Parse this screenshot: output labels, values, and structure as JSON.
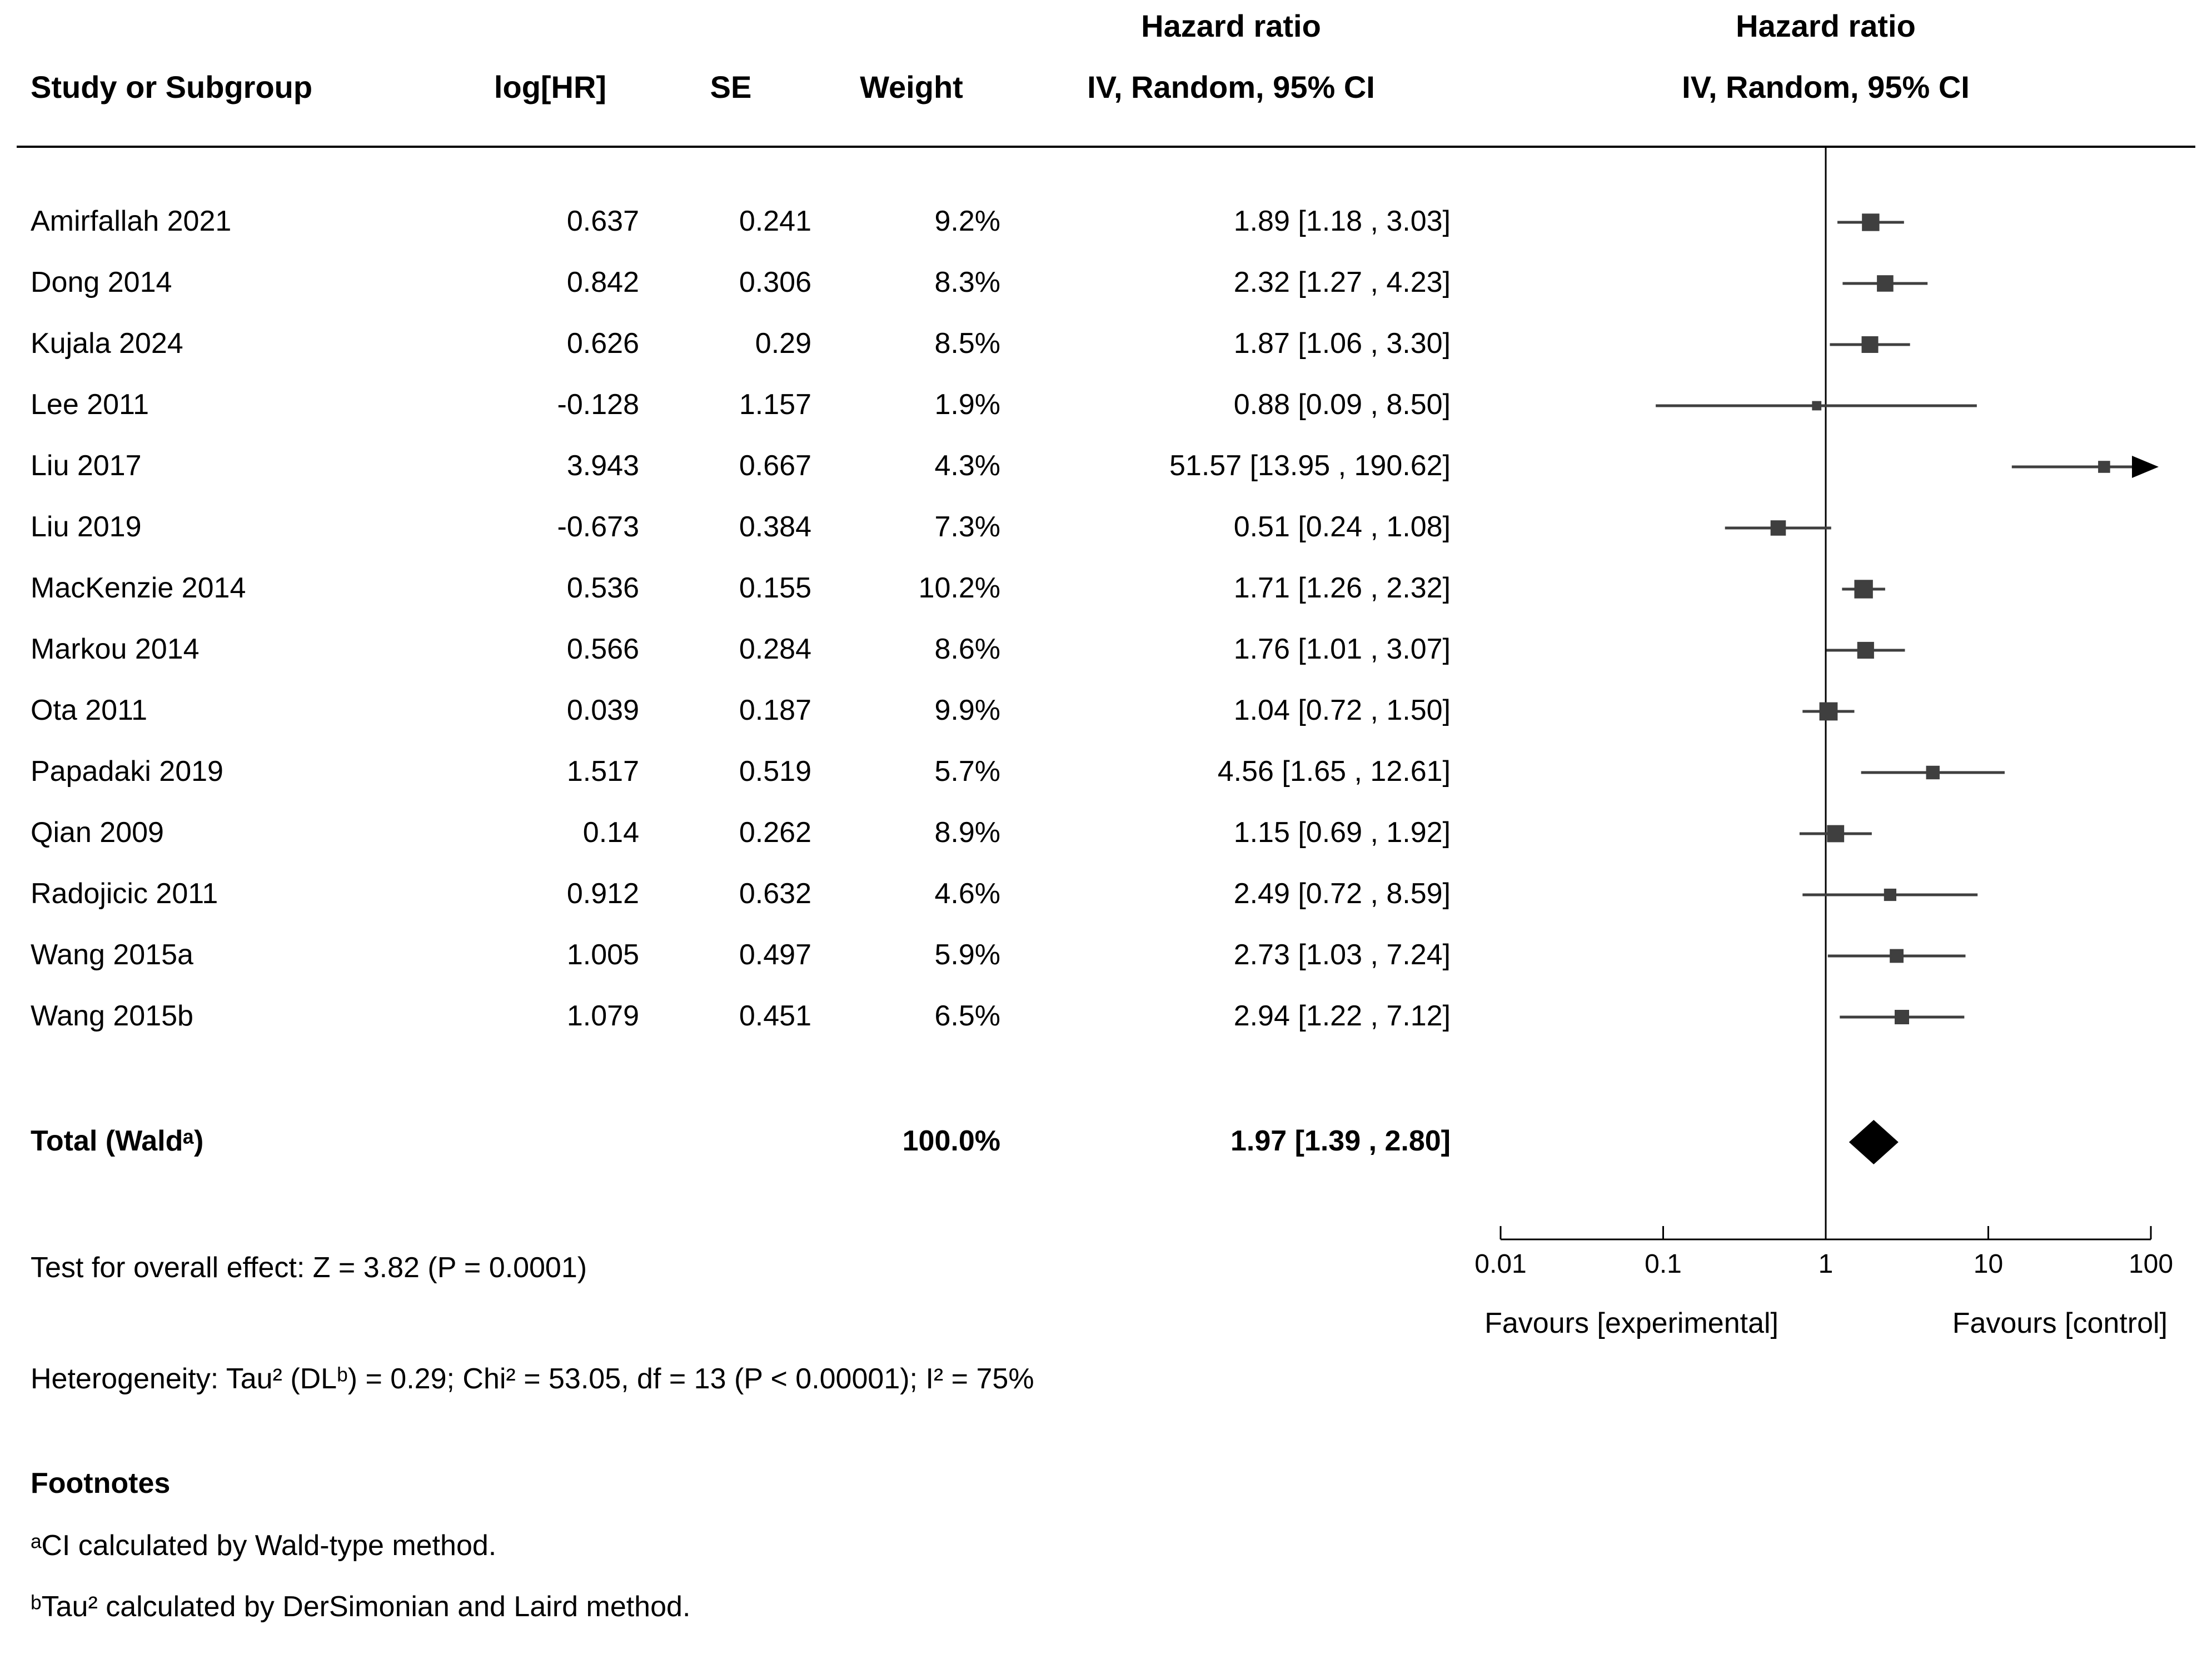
{
  "page": {
    "background": "#ffffff"
  },
  "chart_data": {
    "type": "forest",
    "effect_measure": "Hazard ratio",
    "model": "IV, Random, 95% CI",
    "group_headers": {
      "ci_column": "Hazard ratio",
      "plot_column": "Hazard ratio"
    },
    "subheaders": {
      "ci_column": "IV, Random, 95% CI",
      "plot_column": "IV, Random, 95% CI"
    },
    "columns": {
      "study": "Study or Subgroup",
      "log_hr": "log[HR]",
      "se": "SE",
      "weight": "Weight",
      "ci": "IV, Random, 95% CI"
    },
    "studies": [
      {
        "name": "Amirfallah 2021",
        "log_hr": "0.637",
        "se": "0.241",
        "weight": "9.2%",
        "weight_value": 9.2,
        "ci_label": "1.89 [1.18 , 3.03]",
        "hr": 1.89,
        "lo": 1.18,
        "hi": 3.03
      },
      {
        "name": "Dong 2014",
        "log_hr": "0.842",
        "se": "0.306",
        "weight": "8.3%",
        "weight_value": 8.3,
        "ci_label": "2.32 [1.27 , 4.23]",
        "hr": 2.32,
        "lo": 1.27,
        "hi": 4.23
      },
      {
        "name": "Kujala 2024",
        "log_hr": "0.626",
        "se": "0.29",
        "weight": "8.5%",
        "weight_value": 8.5,
        "ci_label": "1.87 [1.06 , 3.30]",
        "hr": 1.87,
        "lo": 1.06,
        "hi": 3.3
      },
      {
        "name": "Lee 2011",
        "log_hr": "-0.128",
        "se": "1.157",
        "weight": "1.9%",
        "weight_value": 1.9,
        "ci_label": "0.88 [0.09 , 8.50]",
        "hr": 0.88,
        "lo": 0.09,
        "hi": 8.5
      },
      {
        "name": "Liu 2017",
        "log_hr": "3.943",
        "se": "0.667",
        "weight": "4.3%",
        "weight_value": 4.3,
        "ci_label": "51.57 [13.95 , 190.62]",
        "hr": 51.57,
        "lo": 13.95,
        "hi": 190.62
      },
      {
        "name": "Liu 2019",
        "log_hr": "-0.673",
        "se": "0.384",
        "weight": "7.3%",
        "weight_value": 7.3,
        "ci_label": "0.51 [0.24 , 1.08]",
        "hr": 0.51,
        "lo": 0.24,
        "hi": 1.08
      },
      {
        "name": "MacKenzie 2014",
        "log_hr": "0.536",
        "se": "0.155",
        "weight": "10.2%",
        "weight_value": 10.2,
        "ci_label": "1.71 [1.26 , 2.32]",
        "hr": 1.71,
        "lo": 1.26,
        "hi": 2.32
      },
      {
        "name": "Markou 2014",
        "log_hr": "0.566",
        "se": "0.284",
        "weight": "8.6%",
        "weight_value": 8.6,
        "ci_label": "1.76 [1.01 , 3.07]",
        "hr": 1.76,
        "lo": 1.01,
        "hi": 3.07
      },
      {
        "name": "Ota 2011",
        "log_hr": "0.039",
        "se": "0.187",
        "weight": "9.9%",
        "weight_value": 9.9,
        "ci_label": "1.04 [0.72 , 1.50]",
        "hr": 1.04,
        "lo": 0.72,
        "hi": 1.5
      },
      {
        "name": "Papadaki 2019",
        "log_hr": "1.517",
        "se": "0.519",
        "weight": "5.7%",
        "weight_value": 5.7,
        "ci_label": "4.56 [1.65 , 12.61]",
        "hr": 4.56,
        "lo": 1.65,
        "hi": 12.61
      },
      {
        "name": "Qian 2009",
        "log_hr": "0.14",
        "se": "0.262",
        "weight": "8.9%",
        "weight_value": 8.9,
        "ci_label": "1.15 [0.69 , 1.92]",
        "hr": 1.15,
        "lo": 0.69,
        "hi": 1.92
      },
      {
        "name": "Radojicic 2011",
        "log_hr": "0.912",
        "se": "0.632",
        "weight": "4.6%",
        "weight_value": 4.6,
        "ci_label": "2.49 [0.72 , 8.59]",
        "hr": 2.49,
        "lo": 0.72,
        "hi": 8.59
      },
      {
        "name": "Wang 2015a",
        "log_hr": "1.005",
        "se": "0.497",
        "weight": "5.9%",
        "weight_value": 5.9,
        "ci_label": "2.73 [1.03 , 7.24]",
        "hr": 2.73,
        "lo": 1.03,
        "hi": 7.24
      },
      {
        "name": "Wang 2015b",
        "log_hr": "1.079",
        "se": "0.451",
        "weight": "6.5%",
        "weight_value": 6.5,
        "ci_label": "2.94 [1.22 , 7.12]",
        "hr": 2.94,
        "lo": 1.22,
        "hi": 7.12
      }
    ],
    "total": {
      "label": "Total (Waldᵃ)",
      "weight": "100.0%",
      "ci_label": "1.97 [1.39 , 2.80]",
      "hr": 1.97,
      "lo": 1.39,
      "hi": 2.8
    },
    "x_axis": {
      "scale": "log10",
      "min": 0.01,
      "max": 100,
      "ticks": [
        0.01,
        0.1,
        1,
        10,
        100
      ],
      "tick_labels": [
        "0.01",
        "0.1",
        "1",
        "10",
        "100"
      ],
      "reference_value": 1,
      "left_label": "Favours [experimental]",
      "right_label": "Favours [control]"
    },
    "stats": {
      "overall_effect": "Test for overall effect: Z = 3.82 (P = 0.0001)",
      "heterogeneity": "Heterogeneity: Tau² (DLᵇ) = 0.29; Chi² = 53.05, df = 13 (P < 0.00001); I² = 75%"
    },
    "footnotes": {
      "title": "Footnotes",
      "a": "ᵃCI calculated by Wald-type method.",
      "b": "ᵇTau² calculated by DerSimonian and Laird method."
    },
    "colors": {
      "marker": "#3f3f3f",
      "ci_line": "#3f3f3f",
      "axis": "#000000",
      "diamond": "#000000",
      "text": "#000000",
      "background": "#ffffff"
    }
  }
}
